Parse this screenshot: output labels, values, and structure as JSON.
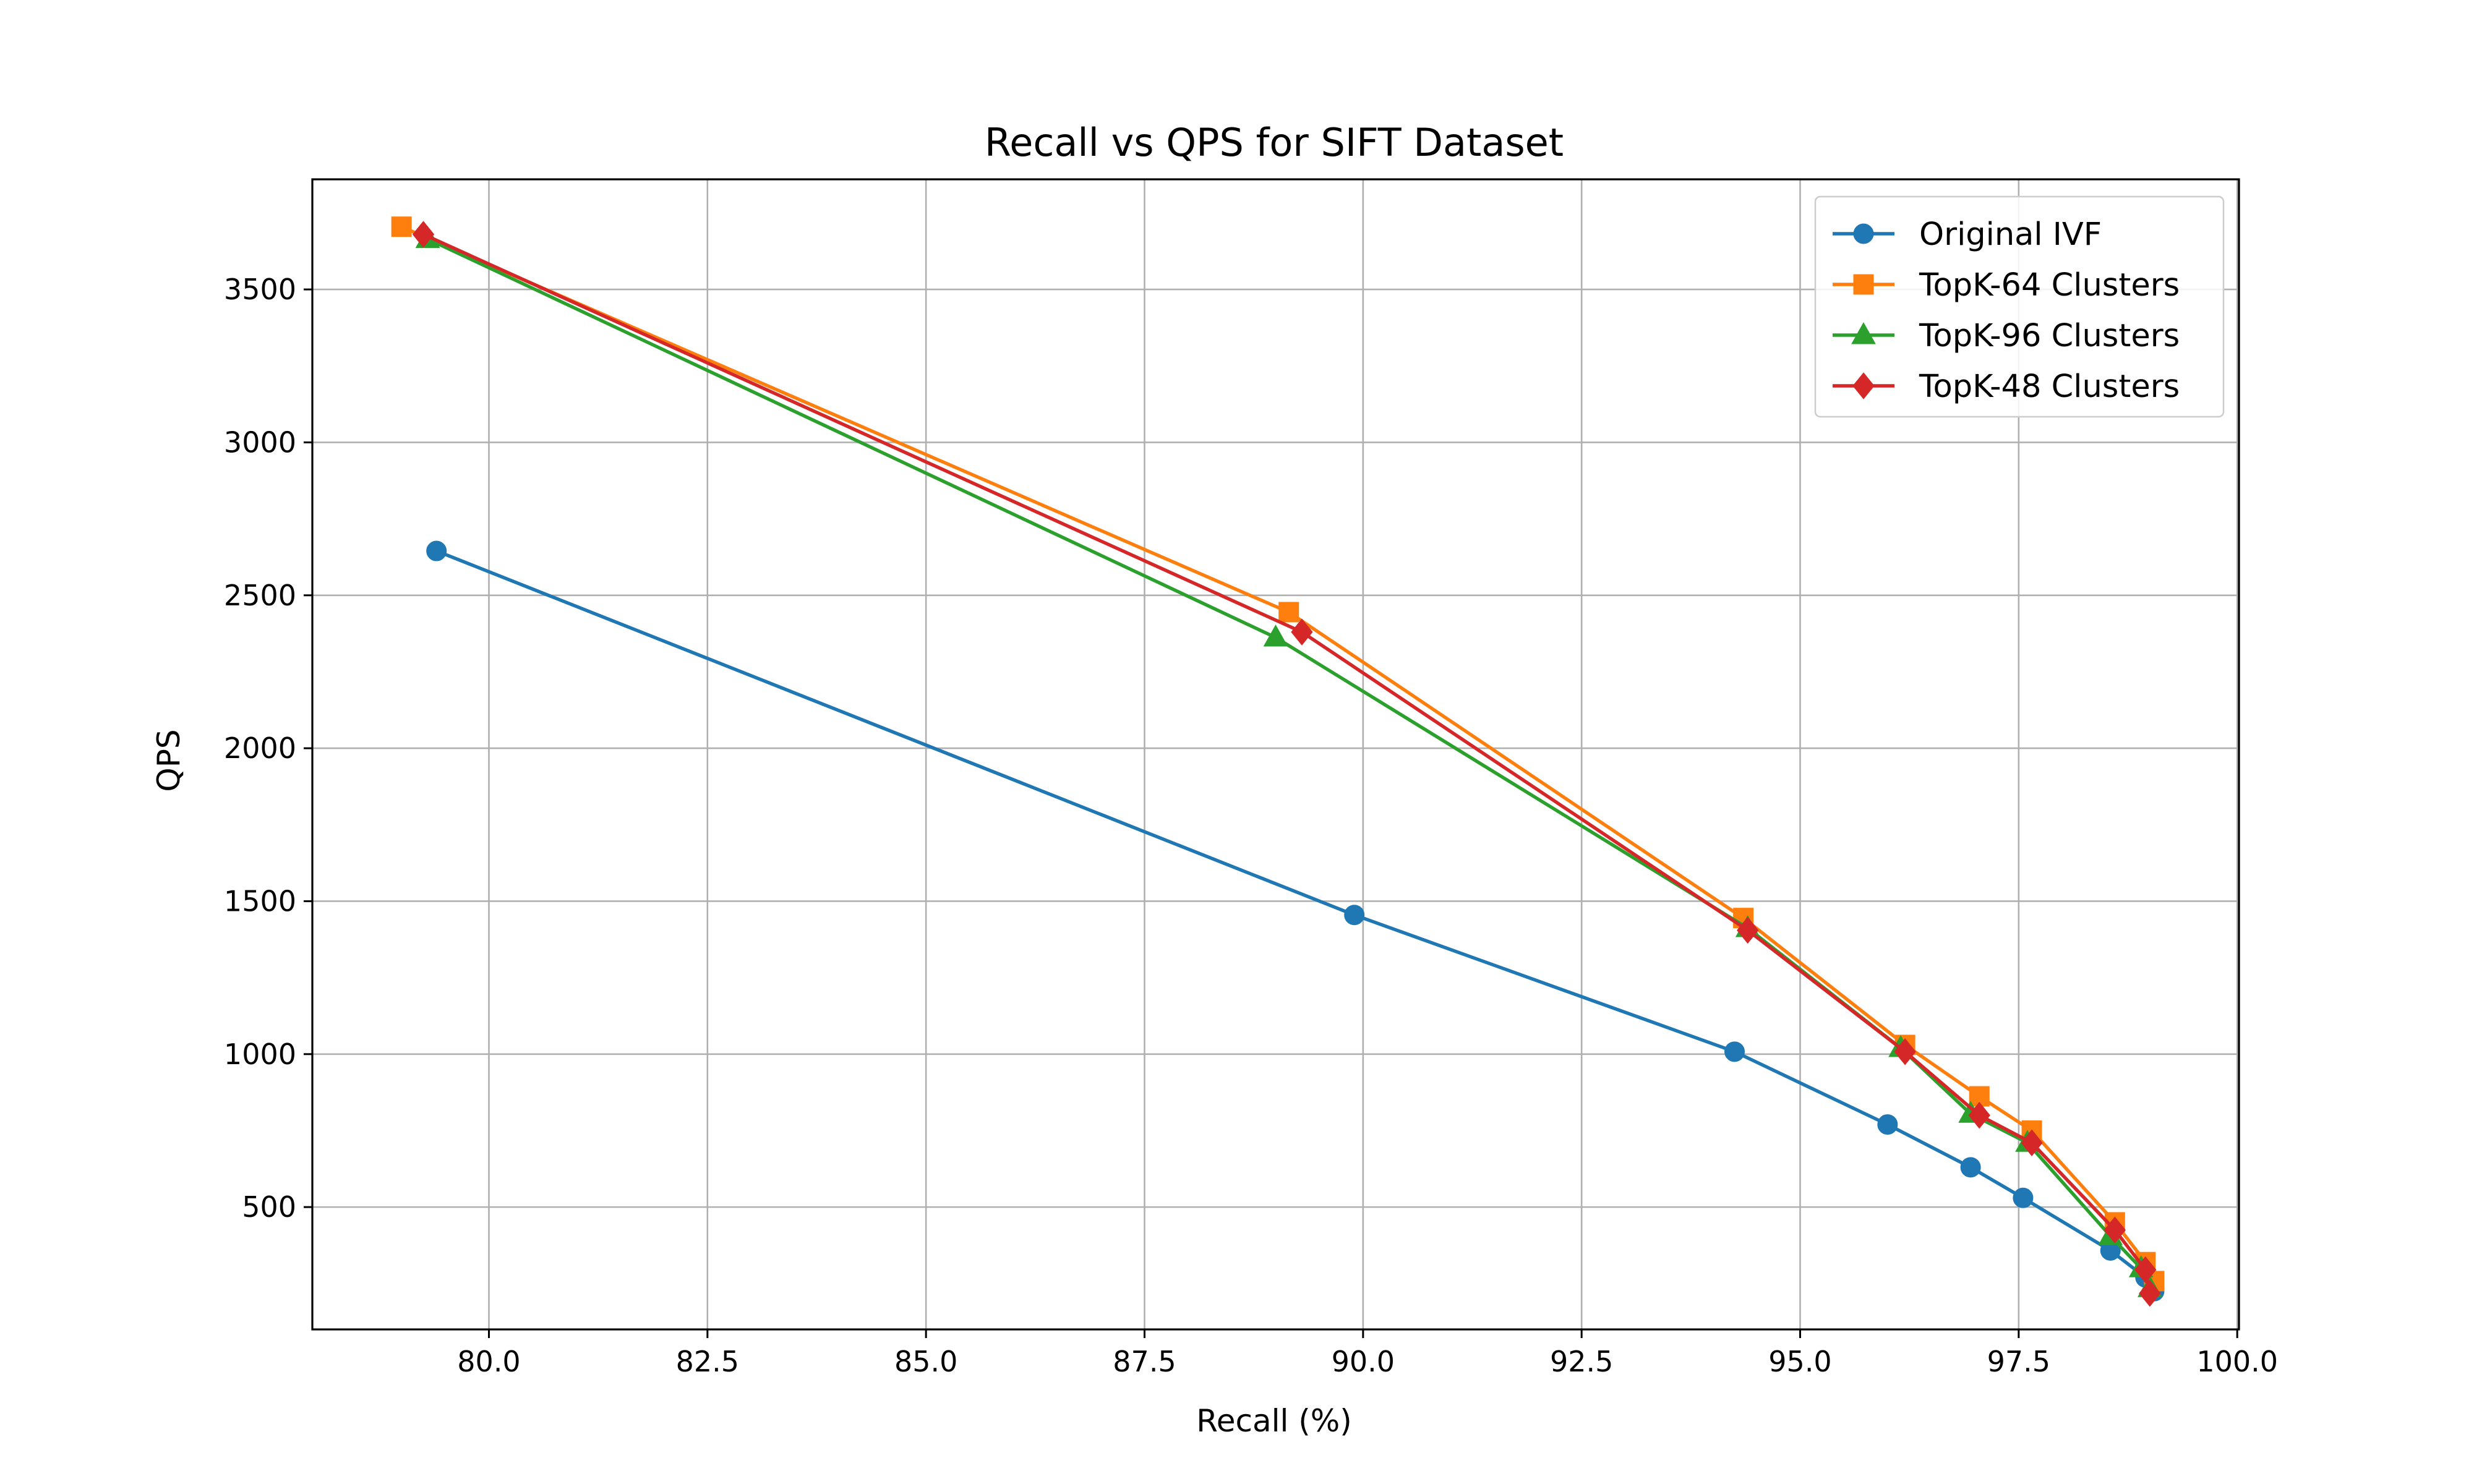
{
  "chart_data": {
    "type": "line",
    "title": "Recall vs QPS for SIFT Dataset",
    "xlabel": "Recall (%)",
    "ylabel": "QPS",
    "xlim": [
      77.98,
      100.02
    ],
    "ylim": [
      100,
      3860
    ],
    "xticks": [
      "80.0",
      "82.5",
      "85.0",
      "87.5",
      "90.0",
      "92.5",
      "95.0",
      "97.5",
      "100.0"
    ],
    "yticks": [
      "500",
      "1000",
      "1500",
      "2000",
      "2500",
      "3000",
      "3500"
    ],
    "grid": true,
    "legend_position": "top-right",
    "series": [
      {
        "name": "Original IVF",
        "color": "#1f77b4",
        "marker": "circle",
        "x": [
          79.4,
          89.9,
          94.25,
          96.0,
          96.95,
          97.55,
          98.55,
          98.95,
          99.05
        ],
        "y": [
          2645,
          1455,
          1008,
          770,
          630,
          530,
          358,
          270,
          225
        ]
      },
      {
        "name": "TopK-64 Clusters",
        "color": "#ff7f0e",
        "marker": "square",
        "x": [
          79.0,
          89.15,
          94.35,
          96.2,
          97.05,
          97.65,
          98.6,
          98.95,
          99.05
        ],
        "y": [
          3705,
          2445,
          1445,
          1030,
          862,
          750,
          450,
          320,
          258
        ]
      },
      {
        "name": "TopK-96 Clusters",
        "color": "#2ca02c",
        "marker": "triangle",
        "x": [
          79.3,
          89.0,
          94.4,
          96.15,
          96.95,
          97.6,
          98.55,
          98.9,
          99.0
        ],
        "y": [
          3665,
          2362,
          1412,
          1020,
          805,
          710,
          405,
          300,
          235
        ]
      },
      {
        "name": "TopK-48 Clusters",
        "color": "#d62728",
        "marker": "diamond",
        "x": [
          79.25,
          89.3,
          94.4,
          96.2,
          97.05,
          97.65,
          98.6,
          98.95,
          99.0
        ],
        "y": [
          3680,
          2380,
          1405,
          1008,
          800,
          710,
          425,
          295,
          218
        ]
      }
    ]
  }
}
